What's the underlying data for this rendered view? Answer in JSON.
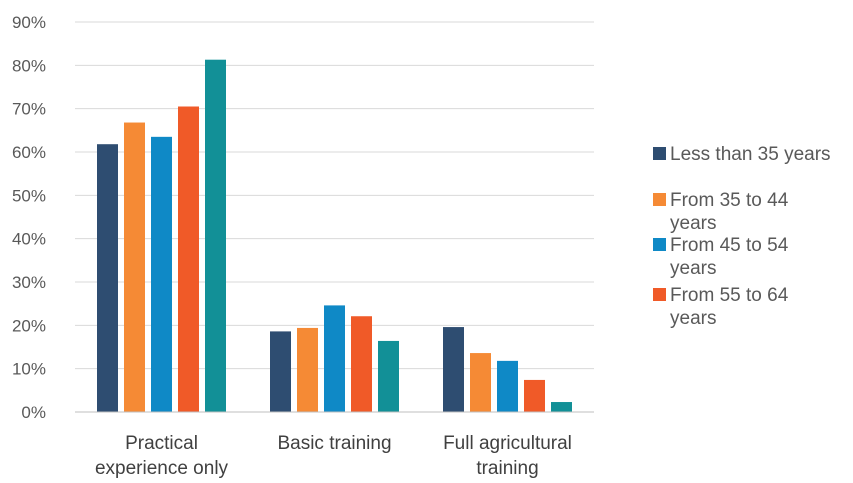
{
  "chart_data": {
    "type": "bar",
    "title": "",
    "xlabel": "",
    "ylabel": "",
    "ylim": [
      0,
      90
    ],
    "y_tick_step": 10,
    "y_tick_labels": [
      "0%",
      "10%",
      "20%",
      "30%",
      "40%",
      "50%",
      "60%",
      "70%",
      "80%",
      "90%"
    ],
    "grid": true,
    "legend_position": "right",
    "categories": [
      [
        "Practical",
        "experience only"
      ],
      [
        "Basic training"
      ],
      [
        "Full agricultural",
        "training"
      ]
    ],
    "series": [
      {
        "name": "Less than 35 years",
        "legend_lines": [
          "Less than 35 years"
        ],
        "color": "#2e4d71",
        "values": [
          61.8,
          18.6,
          19.6
        ]
      },
      {
        "name": "From 35 to 44 years",
        "legend_lines": [
          "From 35 to 44",
          "years"
        ],
        "color": "#f58a35",
        "values": [
          66.8,
          19.4,
          13.6
        ]
      },
      {
        "name": "From 45 to 54 years",
        "legend_lines": [
          "From 45 to 54",
          "years"
        ],
        "color": "#0f89c6",
        "values": [
          63.5,
          24.6,
          11.8
        ]
      },
      {
        "name": "From 55 to 64 years",
        "legend_lines": [
          "From 55 to 64",
          "years"
        ],
        "color": "#f05a28",
        "values": [
          70.5,
          22.1,
          7.4
        ]
      },
      {
        "name": "",
        "legend_lines": [],
        "color": "#129097",
        "values": [
          81.3,
          16.4,
          2.3
        ]
      }
    ]
  }
}
